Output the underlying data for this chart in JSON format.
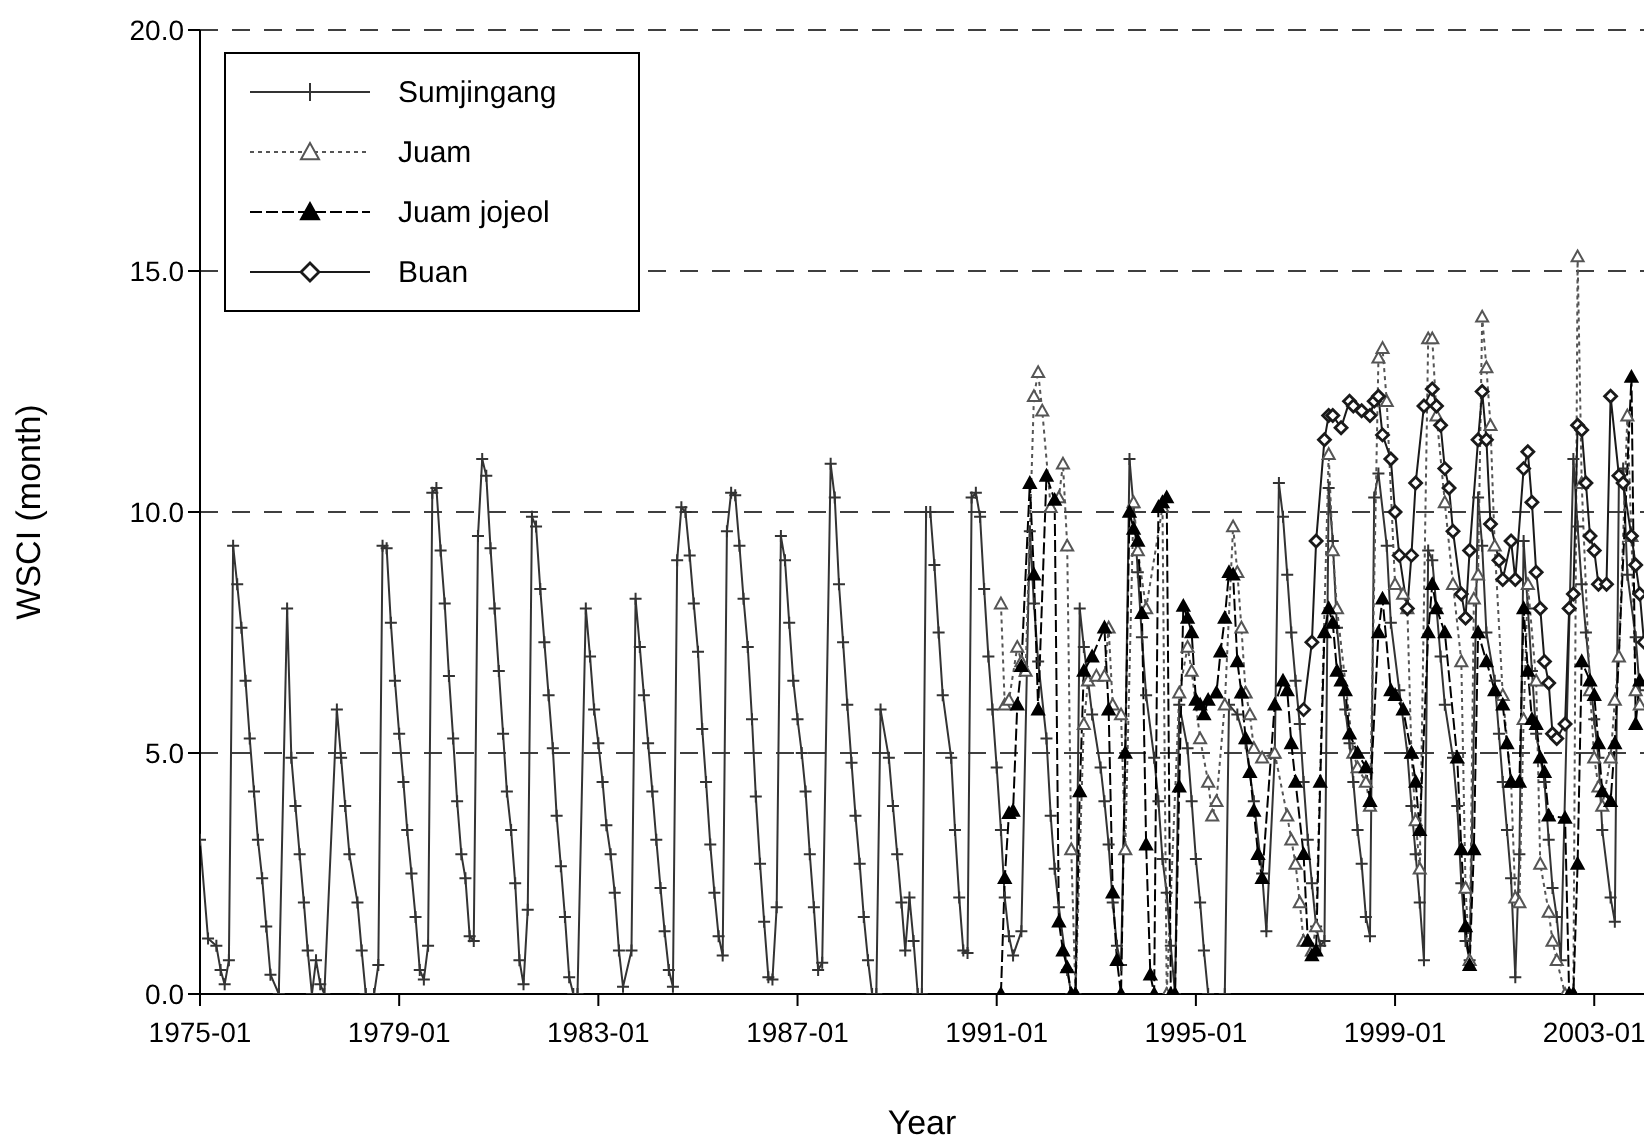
{
  "chart_data": {
    "type": "line",
    "xlabel": "Year",
    "ylabel": "WSCI (month)",
    "xlim": [
      "1975-01",
      "2004-01"
    ],
    "ylim": [
      0,
      20
    ],
    "xticks": [
      "1975-01",
      "1979-01",
      "1983-01",
      "1987-01",
      "1991-01",
      "1995-01",
      "1999-01",
      "2003-01"
    ],
    "yticks": [
      {
        "value": 0,
        "label": "0.0"
      },
      {
        "value": 5,
        "label": "5.0"
      },
      {
        "value": 10,
        "label": "10.0"
      },
      {
        "value": 15,
        "label": "15.0"
      },
      {
        "value": 20,
        "label": "20.0"
      }
    ],
    "grid": "y",
    "legend": "top left",
    "series": [
      {
        "name": "Sumjingang",
        "color": "#333333",
        "marker": "cross",
        "line_style": "solid",
        "x": [
          "1975-01",
          "1975-03",
          "1975-05",
          "1975-06",
          "1975-07",
          "1975-08",
          "1975-09",
          "1975-10",
          "1975-11",
          "1975-12",
          "1976-01",
          "1976-02",
          "1976-03",
          "1976-04",
          "1976-05",
          "1976-06",
          "1976-08",
          "1976-10",
          "1976-11",
          "1976-12",
          "1977-01",
          "1977-02",
          "1977-03",
          "1977-04",
          "1977-05",
          "1977-06",
          "1977-07",
          "1977-10",
          "1977-11",
          "1977-12",
          "1978-01",
          "1978-03",
          "1978-04",
          "1978-05",
          "1978-07",
          "1978-08",
          "1978-09",
          "1978-10",
          "1978-11",
          "1978-12",
          "1979-01",
          "1979-02",
          "1979-03",
          "1979-04",
          "1979-05",
          "1979-06",
          "1979-07",
          "1979-08",
          "1979-09",
          "1979-10",
          "1979-11",
          "1979-12",
          "1980-01",
          "1980-02",
          "1980-03",
          "1980-04",
          "1980-05",
          "1980-06",
          "1980-07",
          "1980-08",
          "1980-09",
          "1980-10",
          "1980-11",
          "1980-12",
          "1981-01",
          "1981-02",
          "1981-03",
          "1981-04",
          "1981-05",
          "1981-06",
          "1981-07",
          "1981-08",
          "1981-09",
          "1981-10",
          "1981-11",
          "1981-12",
          "1982-01",
          "1982-02",
          "1982-03",
          "1982-04",
          "1982-05",
          "1982-06",
          "1982-07",
          "1982-08",
          "1982-10",
          "1982-11",
          "1982-12",
          "1983-01",
          "1983-02",
          "1983-03",
          "1983-04",
          "1983-05",
          "1983-06",
          "1983-07",
          "1983-09",
          "1983-10",
          "1983-11",
          "1983-12",
          "1984-01",
          "1984-02",
          "1984-03",
          "1984-04",
          "1984-05",
          "1984-06",
          "1984-07",
          "1984-08",
          "1984-09",
          "1984-10",
          "1984-11",
          "1984-12",
          "1985-01",
          "1985-02",
          "1985-03",
          "1985-04",
          "1985-05",
          "1985-06",
          "1985-07",
          "1985-08",
          "1985-09",
          "1985-10",
          "1985-11",
          "1985-12",
          "1986-01",
          "1986-02",
          "1986-03",
          "1986-04",
          "1986-05",
          "1986-06",
          "1986-07",
          "1986-08",
          "1986-09",
          "1986-10",
          "1986-11",
          "1986-12",
          "1987-01",
          "1987-02",
          "1987-03",
          "1987-04",
          "1987-05",
          "1987-06",
          "1987-07",
          "1987-09",
          "1987-10",
          "1987-11",
          "1987-12",
          "1988-01",
          "1988-02",
          "1988-03",
          "1988-04",
          "1988-05",
          "1988-06",
          "1988-07",
          "1988-08",
          "1988-09",
          "1988-11",
          "1988-12",
          "1989-01",
          "1989-02",
          "1989-03",
          "1989-04",
          "1989-05",
          "1989-06",
          "1989-07",
          "1989-08",
          "1989-09",
          "1989-10",
          "1989-11",
          "1989-12",
          "1990-02",
          "1990-03",
          "1990-04",
          "1990-05",
          "1990-06",
          "1990-07",
          "1990-08",
          "1990-09",
          "1990-10",
          "1990-11",
          "1990-12",
          "1991-01",
          "1991-02",
          "1991-03",
          "1991-04",
          "1991-05",
          "1991-07",
          "1991-09",
          "1991-10",
          "1991-11",
          "1992-01",
          "1992-02",
          "1992-03",
          "1992-04",
          "1992-06",
          "1992-07",
          "1992-08",
          "1992-09",
          "1992-10",
          "1992-11",
          "1992-12",
          "1993-02",
          "1993-03",
          "1993-04",
          "1993-05",
          "1993-06",
          "1993-07",
          "1993-08",
          "1993-09",
          "1993-10",
          "1993-11",
          "1993-12",
          "1994-01",
          "1994-03",
          "1994-04",
          "1994-05",
          "1994-06",
          "1994-07",
          "1994-08",
          "1994-09",
          "1994-11",
          "1994-12",
          "1995-01",
          "1995-02",
          "1995-03",
          "1995-04",
          "1995-08",
          "1995-09",
          "1995-11",
          "1996-01",
          "1996-03",
          "1996-05",
          "1996-06",
          "1996-08",
          "1996-09",
          "1996-10",
          "1996-11",
          "1996-12",
          "1997-01",
          "1997-02",
          "1997-03",
          "1997-04",
          "1997-05",
          "1997-06",
          "1997-07",
          "1997-08",
          "1997-09",
          "1997-10",
          "1997-11",
          "1997-12",
          "1998-01",
          "1998-02",
          "1998-03",
          "1998-04",
          "1998-05",
          "1998-06",
          "1998-07",
          "1998-08",
          "1998-09",
          "1998-11",
          "1998-12",
          "1999-02",
          "1999-04",
          "1999-05",
          "1999-06",
          "1999-07",
          "1999-08",
          "1999-09",
          "1999-10",
          "1999-11",
          "1999-12",
          "2000-01",
          "2000-03",
          "2000-04",
          "2000-05",
          "2000-06",
          "2000-07",
          "2000-09",
          "2000-10",
          "2000-11",
          "2001-01",
          "2001-02",
          "2001-03",
          "2001-04",
          "2001-05",
          "2001-06",
          "2001-07",
          "2001-08",
          "2001-09",
          "2001-10",
          "2001-11",
          "2002-01",
          "2002-02",
          "2002-03",
          "2002-04",
          "2002-05",
          "2002-08",
          "2002-09",
          "2002-10",
          "2002-11",
          "2003-01",
          "2003-02",
          "2003-03",
          "2003-05",
          "2003-06",
          "2003-07",
          "2003-08",
          "2003-09",
          "2003-11",
          "2003-12"
        ],
        "values": [
          3.2,
          1.15,
          1.0,
          0.5,
          0.2,
          0.7,
          9.3,
          8.5,
          7.6,
          6.5,
          5.3,
          4.2,
          3.2,
          2.4,
          1.4,
          0.4,
          0,
          8.0,
          4.9,
          3.9,
          2.9,
          1.9,
          0.9,
          0,
          0.7,
          0.2,
          0,
          5.9,
          4.9,
          3.9,
          2.9,
          1.9,
          0.9,
          0,
          0,
          0.6,
          9.3,
          9.25,
          7.7,
          6.5,
          5.4,
          4.4,
          3.4,
          2.5,
          1.6,
          0.5,
          0.3,
          1.0,
          10.4,
          10.5,
          9.2,
          8.1,
          6.6,
          5.3,
          4.0,
          2.9,
          2.4,
          1.2,
          1.1,
          9.5,
          11.1,
          10.75,
          9.25,
          8.0,
          6.7,
          5.4,
          4.2,
          3.4,
          2.3,
          0.7,
          0.2,
          1.75,
          9.9,
          9.7,
          8.4,
          7.3,
          6.2,
          5.1,
          3.7,
          2.65,
          1.6,
          0.35,
          0,
          0,
          8.0,
          7.0,
          5.9,
          5.2,
          4.4,
          3.5,
          2.9,
          2.1,
          0.9,
          0.15,
          0.9,
          8.2,
          7.2,
          6.2,
          5.2,
          4.2,
          3.2,
          2.2,
          1.3,
          0.5,
          0.15,
          9.0,
          10.1,
          10.0,
          9.1,
          8.1,
          7.1,
          5.5,
          4.4,
          3.1,
          2.1,
          1.2,
          0.8,
          9.6,
          10.4,
          10.35,
          9.3,
          8.2,
          7.2,
          5.7,
          4.1,
          2.7,
          1.5,
          0.35,
          0.3,
          1.8,
          9.5,
          9.0,
          7.7,
          6.5,
          5.7,
          5.0,
          4.2,
          2.9,
          1.8,
          0.5,
          0.65,
          11.0,
          10.3,
          8.5,
          7.3,
          6.0,
          4.8,
          3.7,
          2.7,
          1.6,
          0.7,
          0,
          0,
          5.9,
          4.9,
          3.9,
          2.9,
          1.9,
          0.9,
          2.0,
          1.1,
          0,
          0,
          10.0,
          10.0,
          8.9,
          7.5,
          6.2,
          4.9,
          3.4,
          2.0,
          0.9,
          0.85,
          10.3,
          10.4,
          9.9,
          8.4,
          7.0,
          5.9,
          4.7,
          3.4,
          2.0,
          1.2,
          0.8,
          1.3,
          9.6,
          8.1,
          6.9,
          5.3,
          3.7,
          2.6,
          1.8,
          0.5,
          0,
          0,
          8.0,
          7.2,
          6.5,
          5.8,
          4.7,
          4.0,
          3.1,
          1.9,
          1.0,
          0.6,
          5.0,
          11.1,
          10.1,
          8.75,
          7.4,
          6.2,
          4.9,
          4.0,
          2.8,
          2.1,
          1.0,
          0,
          6.0,
          5.1,
          4.0,
          2.8,
          1.9,
          0.9,
          0,
          0,
          6.0,
          5.8,
          5.2,
          4.0,
          2.5,
          1.3,
          4.9,
          10.6,
          9.9,
          8.7,
          7.5,
          6.5,
          5.6,
          4.4,
          3.2,
          2.3,
          1.4,
          1.0,
          1.1,
          10.5,
          9.4,
          7.6,
          6.7,
          5.9,
          5.2,
          4.4,
          3.4,
          2.7,
          1.6,
          1.2,
          10.3,
          10.8,
          9.3,
          7.7,
          6.3,
          5.0,
          3.9,
          2.9,
          1.9,
          0.7,
          9.2,
          9.0,
          8.0,
          7.0,
          6.0,
          4.9,
          3.9,
          2.3,
          1.1,
          0.7,
          10.3,
          9.3,
          7.5,
          6.5,
          5.4,
          4.4,
          3.4,
          2.4,
          0.35,
          2.9,
          9.4,
          8.0,
          6.7,
          5.4,
          4.4,
          3.2,
          2.2,
          1.6,
          0.7,
          11.1,
          9.7,
          8.5,
          7.5,
          5.7,
          4.9,
          3.4,
          2.0,
          1.5,
          10.75,
          10.9,
          8.7,
          7.4,
          6.3
        ]
      },
      {
        "name": "Juam",
        "color": "#555555",
        "marker": "triangle-open",
        "line_style": "dotted",
        "x": [
          "1991-02",
          "1991-03",
          "1991-04",
          "1991-06",
          "1991-07",
          "1991-08",
          "1991-10",
          "1991-11",
          "1991-12",
          "1992-02",
          "1992-04",
          "1992-05",
          "1992-06",
          "1992-07",
          "1992-08",
          "1992-10",
          "1992-11",
          "1993-01",
          "1993-03",
          "1993-04",
          "1993-05",
          "1993-07",
          "1993-08",
          "1993-10",
          "1993-11",
          "1994-01",
          "1994-05",
          "1994-06",
          "1994-09",
          "1994-11",
          "1994-12",
          "1995-02",
          "1995-04",
          "1995-05",
          "1995-06",
          "1995-08",
          "1995-10",
          "1995-11",
          "1995-12",
          "1996-01",
          "1996-02",
          "1996-03",
          "1996-05",
          "1996-08",
          "1996-11",
          "1996-12",
          "1997-01",
          "1997-02",
          "1997-03",
          "1997-05",
          "1997-06",
          "1997-09",
          "1997-10",
          "1997-11",
          "1998-03",
          "1998-04",
          "1998-06",
          "1998-07",
          "1998-09",
          "1998-10",
          "1998-11",
          "1999-01",
          "1999-03",
          "1999-04",
          "1999-05",
          "1999-06",
          "1999-07",
          "1999-09",
          "1999-10",
          "1999-11",
          "2000-01",
          "2000-03",
          "2000-05",
          "2000-06",
          "2000-07",
          "2000-08",
          "2000-09",
          "2000-10",
          "2000-11",
          "2000-12",
          "2001-01",
          "2001-03",
          "2001-05",
          "2001-06",
          "2001-07",
          "2001-08",
          "2001-09",
          "2001-11",
          "2001-12",
          "2002-02",
          "2002-03",
          "2002-04",
          "2002-06",
          "2002-08",
          "2002-09",
          "2002-10",
          "2002-12",
          "2003-01",
          "2003-02",
          "2003-03",
          "2003-05",
          "2003-06",
          "2003-07",
          "2003-09",
          "2003-10",
          "2003-11",
          "2003-12"
        ],
        "values": [
          8.1,
          6.0,
          6.1,
          7.2,
          6.9,
          6.7,
          12.4,
          12.9,
          12.1,
          10.1,
          10.3,
          11.0,
          9.3,
          3.0,
          0,
          5.6,
          6.5,
          6.6,
          6.6,
          7.6,
          6.0,
          5.8,
          3.0,
          10.2,
          9.2,
          8.0,
          10.1,
          0,
          6.25,
          7.2,
          6.7,
          5.3,
          4.4,
          3.7,
          4.0,
          6.0,
          9.7,
          8.75,
          7.6,
          6.25,
          5.8,
          5.1,
          4.9,
          5.0,
          3.7,
          3.2,
          2.7,
          1.9,
          1.1,
          0.9,
          1.4,
          11.2,
          9.2,
          8.0,
          5.0,
          4.7,
          4.4,
          3.9,
          13.2,
          13.4,
          12.3,
          8.5,
          8.3,
          8.0,
          5.0,
          3.6,
          2.6,
          13.6,
          13.6,
          12.0,
          10.2,
          8.5,
          6.9,
          2.2,
          0.7,
          8.2,
          8.7,
          14.05,
          13.0,
          11.8,
          9.3,
          6.2,
          4.4,
          2.0,
          1.9,
          5.7,
          8.5,
          6.5,
          2.7,
          1.7,
          1.1,
          0.7,
          0,
          0,
          15.3,
          10.6,
          6.3,
          4.9,
          4.3,
          3.9,
          4.9,
          6.1,
          7.0,
          12.0,
          9.5,
          6.3,
          6.0
        ]
      },
      {
        "name": "Juam jojeol",
        "color": "#000000",
        "marker": "triangle",
        "line_style": "dashed",
        "x": [
          "1991-02",
          "1991-03",
          "1991-04",
          "1991-05",
          "1991-06",
          "1991-07",
          "1991-09",
          "1991-10",
          "1991-11",
          "1992-01",
          "1992-03",
          "1992-04",
          "1992-05",
          "1992-06",
          "1992-07",
          "1992-08",
          "1992-09",
          "1992-10",
          "1992-12",
          "1993-03",
          "1993-04",
          "1993-05",
          "1993-06",
          "1993-07",
          "1993-08",
          "1993-09",
          "1993-10",
          "1993-11",
          "1993-12",
          "1994-01",
          "1994-02",
          "1994-03",
          "1994-04",
          "1994-05",
          "1994-06",
          "1994-07",
          "1994-08",
          "1994-09",
          "1994-10",
          "1994-11",
          "1994-12",
          "1995-01",
          "1995-02",
          "1995-03",
          "1995-04",
          "1995-06",
          "1995-07",
          "1995-08",
          "1995-09",
          "1995-10",
          "1995-11",
          "1995-12",
          "1996-01",
          "1996-02",
          "1996-03",
          "1996-04",
          "1996-05",
          "1996-08",
          "1996-10",
          "1996-11",
          "1996-12",
          "1997-01",
          "1997-03",
          "1997-04",
          "1997-05",
          "1997-06",
          "1997-07",
          "1997-08",
          "1997-09",
          "1997-10",
          "1997-11",
          "1997-12",
          "1998-01",
          "1998-02",
          "1998-04",
          "1998-06",
          "1998-07",
          "1998-09",
          "1998-10",
          "1998-12",
          "1999-01",
          "1999-03",
          "1999-05",
          "1999-06",
          "1999-07",
          "1999-09",
          "1999-10",
          "1999-11",
          "2000-01",
          "2000-04",
          "2000-05",
          "2000-06",
          "2000-07",
          "2000-08",
          "2000-09",
          "2000-11",
          "2001-01",
          "2001-03",
          "2001-04",
          "2001-05",
          "2001-07",
          "2001-08",
          "2001-09",
          "2001-10",
          "2001-11",
          "2001-12",
          "2002-01",
          "2002-02",
          "2002-06",
          "2002-07",
          "2002-08",
          "2002-09",
          "2002-10",
          "2002-12",
          "2003-01",
          "2003-02",
          "2003-03",
          "2003-05",
          "2003-06",
          "2003-10",
          "2003-11",
          "2003-12"
        ],
        "values": [
          0,
          2.4,
          3.75,
          3.8,
          6.0,
          6.8,
          10.6,
          8.7,
          5.9,
          10.75,
          10.25,
          1.5,
          0.9,
          0.55,
          0,
          0,
          4.2,
          6.7,
          7.0,
          7.6,
          5.9,
          2.1,
          0.7,
          0,
          5.0,
          10.0,
          9.65,
          9.4,
          7.9,
          3.1,
          0.4,
          0,
          10.1,
          10.2,
          10.3,
          0,
          0,
          4.3,
          8.05,
          7.8,
          7.5,
          6.1,
          6.0,
          5.8,
          6.1,
          6.25,
          7.1,
          7.8,
          8.75,
          8.7,
          6.9,
          6.25,
          5.3,
          4.6,
          3.8,
          2.9,
          2.4,
          6.0,
          6.5,
          6.3,
          5.2,
          4.4,
          2.9,
          1.1,
          0.8,
          0.9,
          4.4,
          7.5,
          8.0,
          7.7,
          6.7,
          6.5,
          6.3,
          5.4,
          5.0,
          4.7,
          4.0,
          7.5,
          8.2,
          6.3,
          6.2,
          5.9,
          5.0,
          4.4,
          3.4,
          7.5,
          8.5,
          8.0,
          7.5,
          4.9,
          3.0,
          1.4,
          0.6,
          3.0,
          7.5,
          6.9,
          6.3,
          6.0,
          5.2,
          4.4,
          4.4,
          8.0,
          6.7,
          5.7,
          5.6,
          4.9,
          4.6,
          3.7,
          3.65,
          0,
          0,
          2.7,
          6.9,
          6.5,
          6.2,
          5.2,
          4.2,
          4.0,
          5.2,
          12.8,
          5.6,
          6.5
        ]
      },
      {
        "name": "Buan",
        "color": "#1a1a1a",
        "marker": "diamond-open",
        "line_style": "solid",
        "x": [
          "1997-03",
          "1997-05",
          "1997-06",
          "1997-08",
          "1997-09",
          "1997-10",
          "1997-12",
          "1998-02",
          "1998-03",
          "1998-05",
          "1998-07",
          "1998-08",
          "1998-09",
          "1998-10",
          "1998-12",
          "1999-01",
          "1999-02",
          "1999-04",
          "1999-05",
          "1999-06",
          "1999-08",
          "1999-10",
          "1999-11",
          "1999-12",
          "2000-01",
          "2000-02",
          "2000-03",
          "2000-05",
          "2000-06",
          "2000-07",
          "2000-09",
          "2000-10",
          "2000-11",
          "2000-12",
          "2001-02",
          "2001-03",
          "2001-05",
          "2001-06",
          "2001-08",
          "2001-09",
          "2001-10",
          "2001-11",
          "2001-12",
          "2002-01",
          "2002-02",
          "2002-03",
          "2002-04",
          "2002-06",
          "2002-07",
          "2002-08",
          "2002-09",
          "2002-10",
          "2002-11",
          "2002-12",
          "2003-01",
          "2003-02",
          "2003-04",
          "2003-05",
          "2003-07",
          "2003-08",
          "2003-10",
          "2003-11",
          "2003-12",
          "2004-01"
        ],
        "values": [
          5.9,
          7.3,
          9.4,
          11.5,
          12.0,
          12.0,
          11.75,
          12.3,
          12.2,
          12.1,
          12.0,
          12.3,
          12.4,
          11.6,
          11.1,
          10.0,
          9.1,
          8.0,
          9.1,
          10.6,
          12.2,
          12.55,
          12.2,
          11.8,
          10.9,
          10.5,
          9.6,
          8.3,
          7.8,
          9.2,
          11.5,
          12.5,
          11.5,
          9.75,
          9.0,
          8.6,
          9.4,
          8.6,
          10.9,
          11.25,
          10.2,
          8.75,
          8.0,
          6.9,
          6.45,
          5.4,
          5.3,
          5.6,
          8.0,
          8.3,
          11.8,
          11.7,
          10.6,
          9.5,
          9.2,
          8.5,
          8.5,
          12.4,
          10.75,
          10.6,
          9.5,
          8.9,
          8.3,
          7.3
        ]
      }
    ]
  }
}
